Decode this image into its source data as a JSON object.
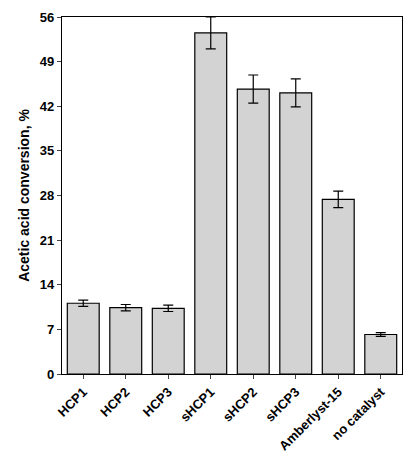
{
  "chart_data": {
    "type": "bar",
    "y_label": "Acetic acid conversion, %",
    "categories": [
      "HCP1",
      "HCP2",
      "HCP3",
      "sHCP1",
      "sHCP2",
      "sHCP3",
      "Amberlyst-15",
      "no catalyst"
    ],
    "values": [
      11.1,
      10.4,
      10.3,
      53.5,
      44.7,
      44.1,
      27.4,
      6.2
    ],
    "errors": [
      0.5,
      0.5,
      0.5,
      2.5,
      2.2,
      2.2,
      1.3,
      0.3
    ],
    "color": "#d3d3d3",
    "ylim": [
      0,
      56
    ],
    "yticks": [
      0,
      7,
      14,
      21,
      28,
      35,
      42,
      49,
      56
    ],
    "grid": false
  }
}
